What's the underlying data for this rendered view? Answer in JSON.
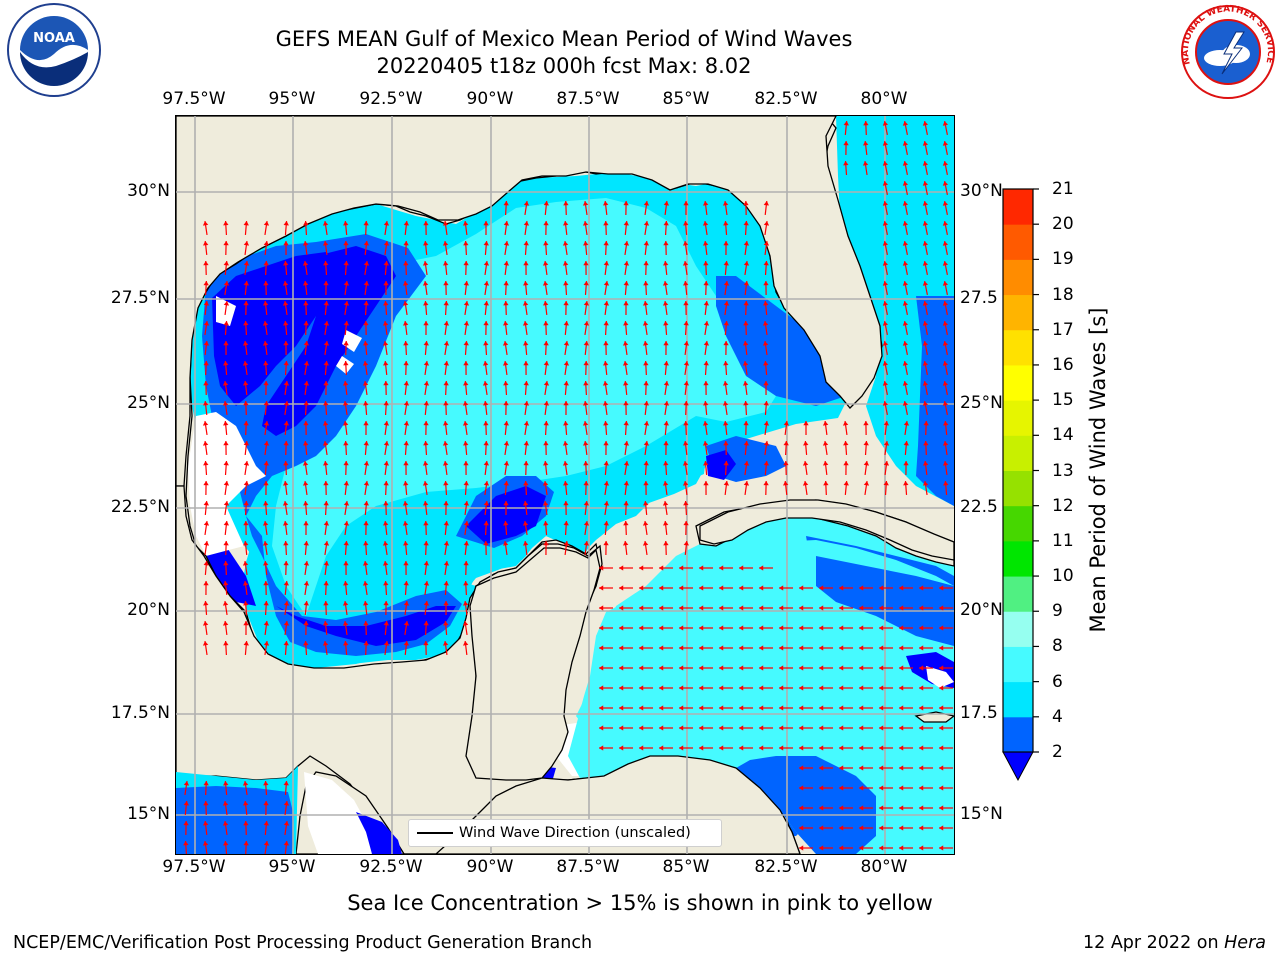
{
  "header": {
    "title_line1": "GEFS MEAN Gulf of Mexico Mean Period of Wind Waves",
    "title_line2": "20220405 t18z 000h fcst   Max: 8.02"
  },
  "axes": {
    "lon_labels": [
      "97.5°W",
      "95°W",
      "92.5°W",
      "90°W",
      "87.5°W",
      "85°W",
      "82.5°W",
      "80°W"
    ],
    "lat_labels_left": [
      "30°N",
      "27.5°N",
      "25°N",
      "22.5°N",
      "20°N",
      "17.5°N",
      "15°N"
    ],
    "lat_labels_right": [
      "30°N",
      "27.5",
      "25°N",
      "22.5",
      "20°N",
      "17.5",
      "15°N"
    ],
    "lon_values": [
      -97.5,
      -95,
      -92.5,
      -90,
      -87.5,
      -85,
      -82.5,
      -80
    ],
    "lat_values": [
      30,
      27.5,
      25,
      22.5,
      20,
      17.5,
      15
    ]
  },
  "legend": {
    "label": "Wind Wave Direction (unscaled)"
  },
  "colorbar": {
    "title": "Mean Period of Wind Waves [s]",
    "ticks_upper": [
      "21",
      "20",
      "19",
      "18",
      "17",
      "16",
      "15",
      "14",
      "13",
      "12",
      "11",
      "10",
      "9"
    ],
    "ticks_lower": [
      "8",
      "6",
      "4",
      "2"
    ],
    "levels": [
      2,
      4,
      6,
      8,
      9,
      10,
      11,
      12,
      13,
      14,
      15,
      16,
      17,
      18,
      19,
      20,
      21
    ],
    "colors": [
      "#0064ff",
      "#00e6ff",
      "#46faff",
      "#96fff0",
      "#50f082",
      "#00e600",
      "#46d700",
      "#96e100",
      "#c8f000",
      "#e6f500",
      "#ffff00",
      "#ffe100",
      "#ffb400",
      "#ff8c00",
      "#ff5a00",
      "#ff2800"
    ],
    "under_color": "#0000ff"
  },
  "map": {
    "land_color": "#efecdc",
    "arrow_color": "#ff0000",
    "grid_color": "#b0b0b0"
  },
  "footer": {
    "sea_ice_note": "Sea Ice Concentration > 15% is shown in pink to yellow",
    "credit": "NCEP/EMC/Verification Post Processing Product Generation Branch",
    "date_prefix": "12 Apr 2022 on ",
    "date_machine": "Hera"
  },
  "logos": {
    "noaa_text": "NOAA",
    "nws_text": "NATIONAL WEATHER SERVICE"
  }
}
